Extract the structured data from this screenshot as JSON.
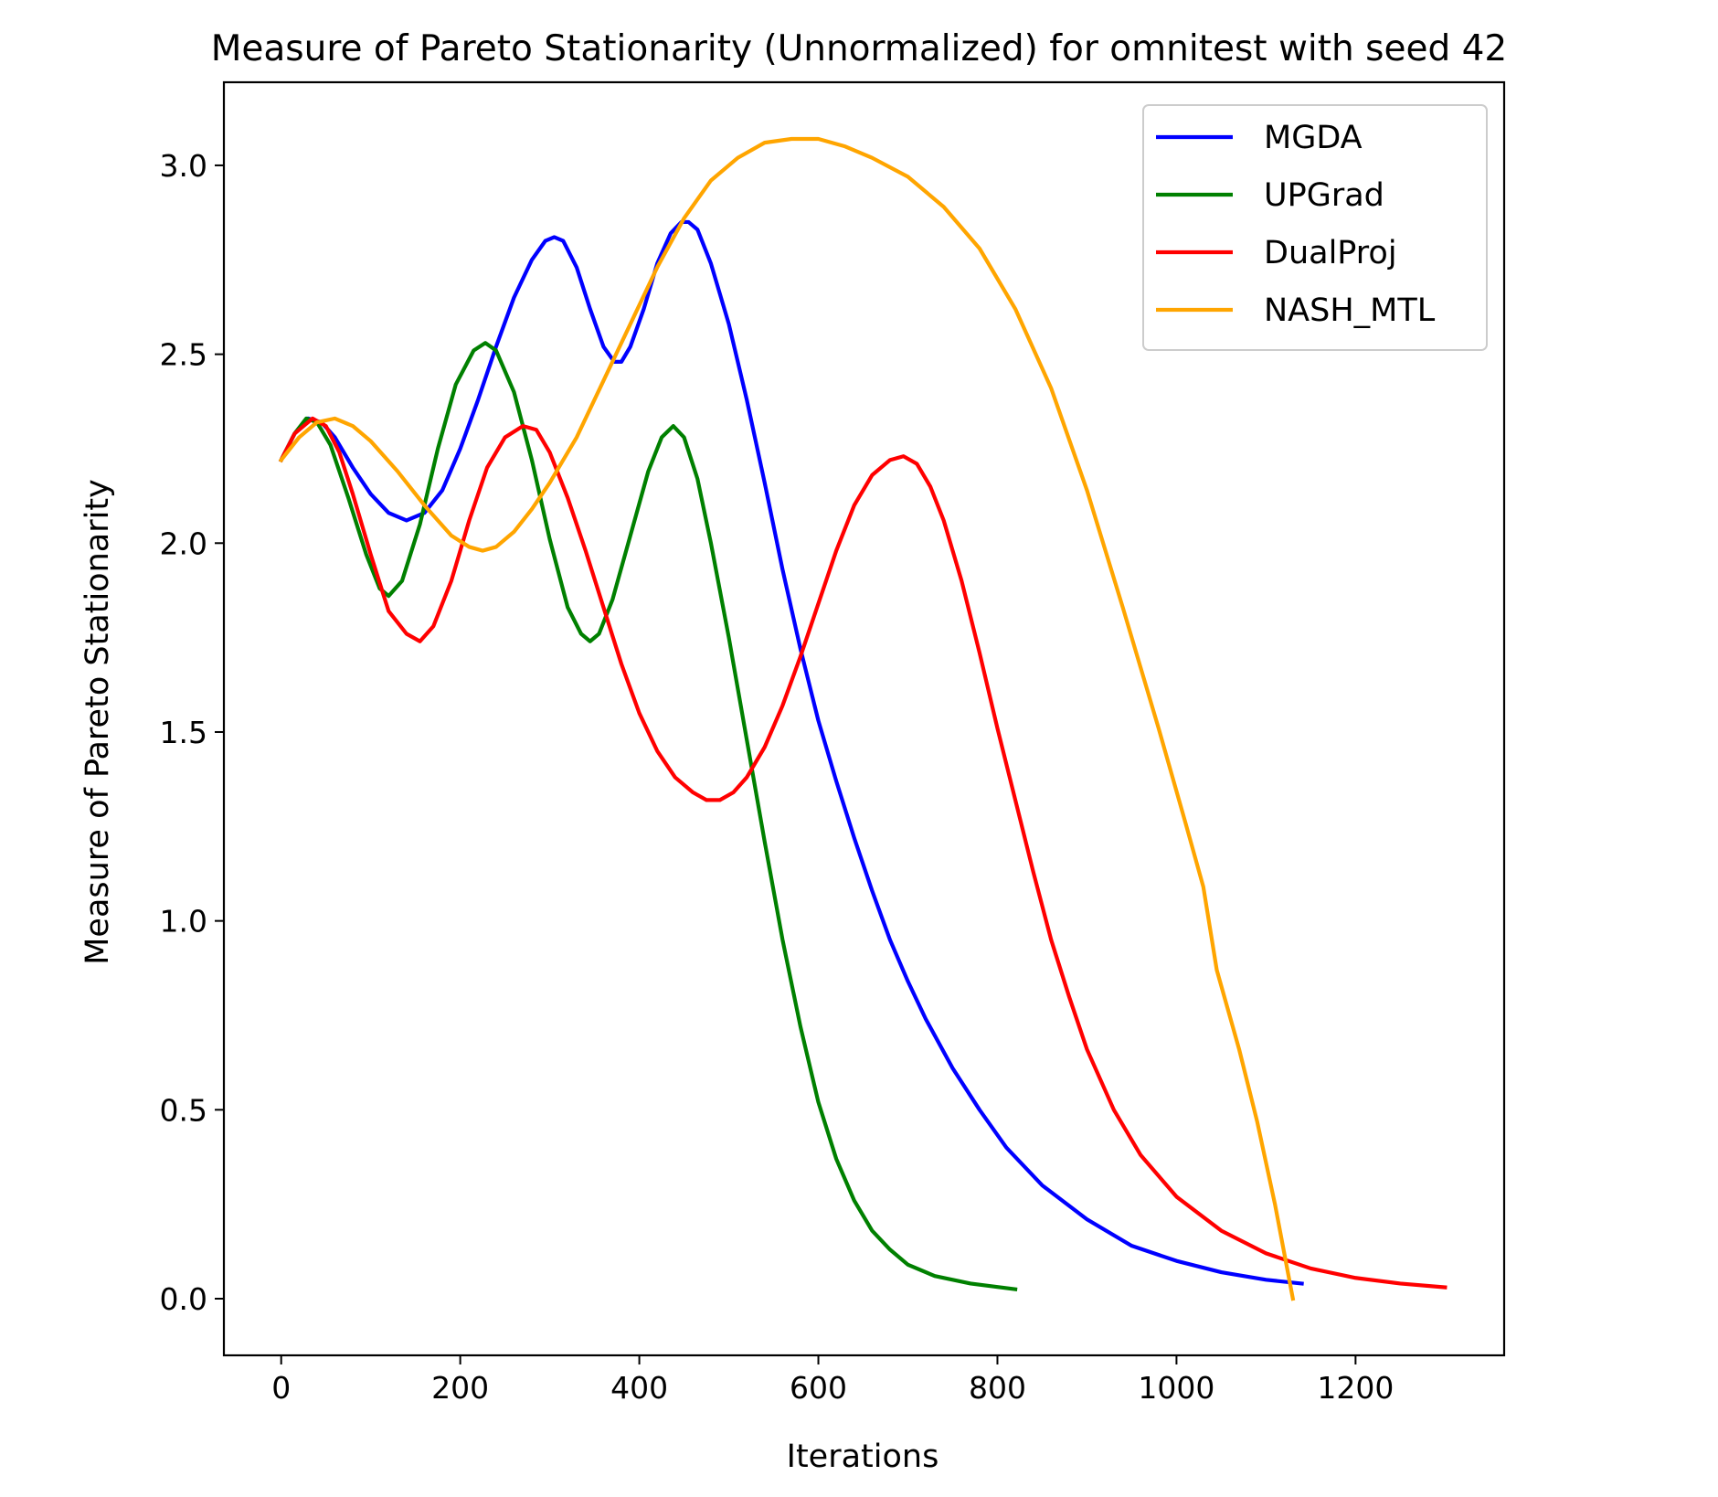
{
  "chart_data": {
    "type": "line",
    "title": "Measure of Pareto Stationarity (Unnormalized) for omnitest with seed 42",
    "xlabel": "Iterations",
    "ylabel": "Measure of Pareto Stationarity",
    "xlim": [
      -64,
      1366
    ],
    "ylim": [
      -0.15,
      3.22
    ],
    "xticks": [
      0,
      200,
      400,
      600,
      800,
      1000,
      1200
    ],
    "xtick_labels": [
      "0",
      "200",
      "400",
      "600",
      "800",
      "1000",
      "1200"
    ],
    "yticks": [
      0.0,
      0.5,
      1.0,
      1.5,
      2.0,
      2.5,
      3.0
    ],
    "ytick_labels": [
      "0.0",
      "0.5",
      "1.0",
      "1.5",
      "2.0",
      "2.5",
      "3.0"
    ],
    "grid": false,
    "legend_position": "top-right",
    "series": [
      {
        "name": "MGDA",
        "color": "#0000ff",
        "points": [
          [
            0,
            2.22
          ],
          [
            15,
            2.29
          ],
          [
            30,
            2.33
          ],
          [
            45,
            2.32
          ],
          [
            60,
            2.28
          ],
          [
            80,
            2.2
          ],
          [
            100,
            2.13
          ],
          [
            120,
            2.08
          ],
          [
            140,
            2.06
          ],
          [
            160,
            2.08
          ],
          [
            180,
            2.14
          ],
          [
            200,
            2.25
          ],
          [
            220,
            2.38
          ],
          [
            240,
            2.52
          ],
          [
            260,
            2.65
          ],
          [
            280,
            2.75
          ],
          [
            295,
            2.8
          ],
          [
            305,
            2.81
          ],
          [
            315,
            2.8
          ],
          [
            330,
            2.73
          ],
          [
            345,
            2.62
          ],
          [
            360,
            2.52
          ],
          [
            372,
            2.48
          ],
          [
            380,
            2.48
          ],
          [
            390,
            2.52
          ],
          [
            405,
            2.62
          ],
          [
            420,
            2.74
          ],
          [
            435,
            2.82
          ],
          [
            447,
            2.85
          ],
          [
            455,
            2.85
          ],
          [
            465,
            2.83
          ],
          [
            480,
            2.74
          ],
          [
            500,
            2.58
          ],
          [
            520,
            2.38
          ],
          [
            540,
            2.16
          ],
          [
            560,
            1.93
          ],
          [
            580,
            1.72
          ],
          [
            600,
            1.53
          ],
          [
            620,
            1.37
          ],
          [
            640,
            1.22
          ],
          [
            660,
            1.08
          ],
          [
            680,
            0.95
          ],
          [
            700,
            0.84
          ],
          [
            720,
            0.74
          ],
          [
            750,
            0.61
          ],
          [
            780,
            0.5
          ],
          [
            810,
            0.4
          ],
          [
            850,
            0.3
          ],
          [
            900,
            0.21
          ],
          [
            950,
            0.14
          ],
          [
            1000,
            0.1
          ],
          [
            1050,
            0.07
          ],
          [
            1100,
            0.05
          ],
          [
            1140,
            0.04
          ]
        ]
      },
      {
        "name": "UPGrad",
        "color": "#008000",
        "points": [
          [
            0,
            2.22
          ],
          [
            15,
            2.29
          ],
          [
            28,
            2.33
          ],
          [
            40,
            2.32
          ],
          [
            55,
            2.26
          ],
          [
            75,
            2.12
          ],
          [
            95,
            1.97
          ],
          [
            110,
            1.88
          ],
          [
            120,
            1.86
          ],
          [
            135,
            1.9
          ],
          [
            155,
            2.05
          ],
          [
            175,
            2.25
          ],
          [
            195,
            2.42
          ],
          [
            215,
            2.51
          ],
          [
            228,
            2.53
          ],
          [
            240,
            2.51
          ],
          [
            260,
            2.4
          ],
          [
            280,
            2.22
          ],
          [
            300,
            2.01
          ],
          [
            320,
            1.83
          ],
          [
            335,
            1.76
          ],
          [
            345,
            1.74
          ],
          [
            355,
            1.76
          ],
          [
            370,
            1.85
          ],
          [
            390,
            2.02
          ],
          [
            410,
            2.19
          ],
          [
            425,
            2.28
          ],
          [
            438,
            2.31
          ],
          [
            450,
            2.28
          ],
          [
            465,
            2.17
          ],
          [
            480,
            2.0
          ],
          [
            500,
            1.75
          ],
          [
            520,
            1.48
          ],
          [
            540,
            1.21
          ],
          [
            560,
            0.95
          ],
          [
            580,
            0.72
          ],
          [
            600,
            0.52
          ],
          [
            620,
            0.37
          ],
          [
            640,
            0.26
          ],
          [
            660,
            0.18
          ],
          [
            680,
            0.13
          ],
          [
            700,
            0.09
          ],
          [
            730,
            0.06
          ],
          [
            770,
            0.04
          ],
          [
            820,
            0.025
          ]
        ]
      },
      {
        "name": "DualProj",
        "color": "#ff0000",
        "points": [
          [
            0,
            2.22
          ],
          [
            15,
            2.29
          ],
          [
            35,
            2.33
          ],
          [
            50,
            2.31
          ],
          [
            65,
            2.24
          ],
          [
            80,
            2.13
          ],
          [
            100,
            1.97
          ],
          [
            120,
            1.82
          ],
          [
            140,
            1.76
          ],
          [
            155,
            1.74
          ],
          [
            170,
            1.78
          ],
          [
            190,
            1.9
          ],
          [
            210,
            2.06
          ],
          [
            230,
            2.2
          ],
          [
            250,
            2.28
          ],
          [
            270,
            2.31
          ],
          [
            285,
            2.3
          ],
          [
            300,
            2.24
          ],
          [
            320,
            2.12
          ],
          [
            340,
            1.98
          ],
          [
            360,
            1.83
          ],
          [
            380,
            1.68
          ],
          [
            400,
            1.55
          ],
          [
            420,
            1.45
          ],
          [
            440,
            1.38
          ],
          [
            460,
            1.34
          ],
          [
            475,
            1.32
          ],
          [
            490,
            1.32
          ],
          [
            505,
            1.34
          ],
          [
            520,
            1.38
          ],
          [
            540,
            1.46
          ],
          [
            560,
            1.57
          ],
          [
            580,
            1.7
          ],
          [
            600,
            1.84
          ],
          [
            620,
            1.98
          ],
          [
            640,
            2.1
          ],
          [
            660,
            2.18
          ],
          [
            680,
            2.22
          ],
          [
            695,
            2.23
          ],
          [
            710,
            2.21
          ],
          [
            725,
            2.15
          ],
          [
            740,
            2.06
          ],
          [
            760,
            1.9
          ],
          [
            780,
            1.71
          ],
          [
            800,
            1.51
          ],
          [
            820,
            1.32
          ],
          [
            840,
            1.13
          ],
          [
            860,
            0.95
          ],
          [
            880,
            0.8
          ],
          [
            900,
            0.66
          ],
          [
            930,
            0.5
          ],
          [
            960,
            0.38
          ],
          [
            1000,
            0.27
          ],
          [
            1050,
            0.18
          ],
          [
            1100,
            0.12
          ],
          [
            1150,
            0.08
          ],
          [
            1200,
            0.055
          ],
          [
            1250,
            0.04
          ],
          [
            1300,
            0.03
          ]
        ]
      },
      {
        "name": "NASH_MTL",
        "color": "#ffa500",
        "points": [
          [
            0,
            2.22
          ],
          [
            20,
            2.28
          ],
          [
            40,
            2.32
          ],
          [
            60,
            2.33
          ],
          [
            80,
            2.31
          ],
          [
            100,
            2.27
          ],
          [
            130,
            2.19
          ],
          [
            160,
            2.1
          ],
          [
            190,
            2.02
          ],
          [
            210,
            1.99
          ],
          [
            225,
            1.98
          ],
          [
            240,
            1.99
          ],
          [
            260,
            2.03
          ],
          [
            280,
            2.09
          ],
          [
            300,
            2.16
          ],
          [
            330,
            2.28
          ],
          [
            360,
            2.43
          ],
          [
            390,
            2.58
          ],
          [
            420,
            2.73
          ],
          [
            450,
            2.86
          ],
          [
            480,
            2.96
          ],
          [
            510,
            3.02
          ],
          [
            540,
            3.06
          ],
          [
            570,
            3.07
          ],
          [
            600,
            3.07
          ],
          [
            630,
            3.05
          ],
          [
            660,
            3.02
          ],
          [
            700,
            2.97
          ],
          [
            740,
            2.89
          ],
          [
            780,
            2.78
          ],
          [
            820,
            2.62
          ],
          [
            860,
            2.41
          ],
          [
            900,
            2.14
          ],
          [
            940,
            1.83
          ],
          [
            980,
            1.51
          ],
          [
            1010,
            1.26
          ],
          [
            1030,
            1.09
          ],
          [
            1045,
            0.87
          ],
          [
            1070,
            0.66
          ],
          [
            1090,
            0.47
          ],
          [
            1110,
            0.25
          ],
          [
            1130,
            0.0
          ]
        ]
      }
    ]
  }
}
